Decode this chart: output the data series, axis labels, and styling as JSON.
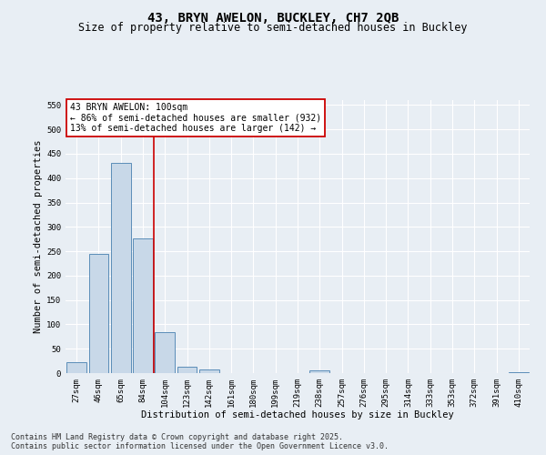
{
  "title": "43, BRYN AWELON, BUCKLEY, CH7 2QB",
  "subtitle": "Size of property relative to semi-detached houses in Buckley",
  "xlabel": "Distribution of semi-detached houses by size in Buckley",
  "ylabel": "Number of semi-detached properties",
  "categories": [
    "27sqm",
    "46sqm",
    "65sqm",
    "84sqm",
    "104sqm",
    "123sqm",
    "142sqm",
    "161sqm",
    "180sqm",
    "199sqm",
    "219sqm",
    "238sqm",
    "257sqm",
    "276sqm",
    "295sqm",
    "314sqm",
    "333sqm",
    "353sqm",
    "372sqm",
    "391sqm",
    "410sqm"
  ],
  "values": [
    22,
    244,
    432,
    277,
    84,
    14,
    8,
    0,
    0,
    0,
    0,
    5,
    0,
    0,
    0,
    0,
    0,
    0,
    0,
    0,
    2
  ],
  "bar_color": "#c8d8e8",
  "bar_edge_color": "#5b8db8",
  "vline_color": "#cc0000",
  "vline_x": 3.5,
  "annotation_line1": "43 BRYN AWELON: 100sqm",
  "annotation_line2": "← 86% of semi-detached houses are smaller (932)",
  "annotation_line3": "13% of semi-detached houses are larger (142) →",
  "annotation_box_color": "#ffffff",
  "annotation_box_edge": "#cc0000",
  "ylim": [
    0,
    560
  ],
  "yticks": [
    0,
    50,
    100,
    150,
    200,
    250,
    300,
    350,
    400,
    450,
    500,
    550
  ],
  "background_color": "#e8eef4",
  "grid_color": "#ffffff",
  "footer_line1": "Contains HM Land Registry data © Crown copyright and database right 2025.",
  "footer_line2": "Contains public sector information licensed under the Open Government Licence v3.0.",
  "title_fontsize": 10,
  "subtitle_fontsize": 8.5,
  "axis_label_fontsize": 7.5,
  "tick_fontsize": 6.5,
  "annotation_fontsize": 7,
  "footer_fontsize": 6
}
